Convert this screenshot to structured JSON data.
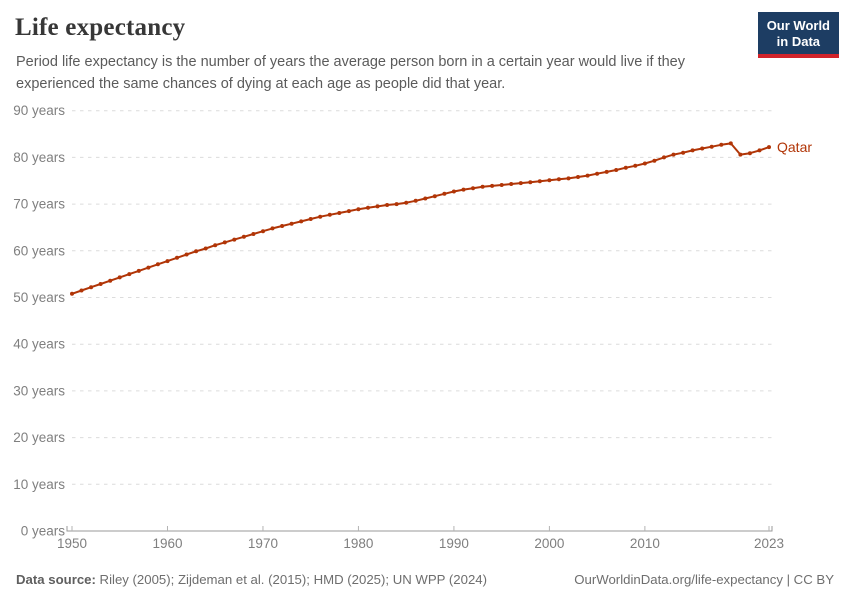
{
  "header": {
    "title": "Life expectancy",
    "subtitle": "Period life expectancy is the number of years the average person born in a certain year would live if they experienced the same chances of dying at each age as people did that year.",
    "logo": {
      "line1": "Our World",
      "line2": "in Data",
      "bg_color": "#1d3d63",
      "accent_color": "#d1232a"
    }
  },
  "footer": {
    "data_source_label": "Data source:",
    "data_source_text": " Riley (2005); Zijdeman et al. (2015); HMD (2025); UN WPP (2024)",
    "link_text": "OurWorldinData.org/life-expectancy | CC BY"
  },
  "chart_data": {
    "type": "line",
    "title": "Life expectancy",
    "grid": "horizontal-dashed",
    "legend_position": "end-of-line-label",
    "x_ticks": [
      1950,
      1960,
      1970,
      1980,
      1990,
      2000,
      2010,
      2023
    ],
    "y_ticks": [
      0,
      10,
      20,
      30,
      40,
      50,
      60,
      70,
      80,
      90
    ],
    "y_tick_suffix": " years",
    "xlim": [
      1950,
      2023
    ],
    "ylim": [
      0,
      90
    ],
    "line_color": "#B13507",
    "grid_color": "#dcdcdc",
    "axis_color": "#999999",
    "tick_label_color": "#7f7f7f",
    "series": [
      {
        "name": "Qatar",
        "color": "#B13507",
        "years": [
          1950,
          1951,
          1952,
          1953,
          1954,
          1955,
          1956,
          1957,
          1958,
          1959,
          1960,
          1961,
          1962,
          1963,
          1964,
          1965,
          1966,
          1967,
          1968,
          1969,
          1970,
          1971,
          1972,
          1973,
          1974,
          1975,
          1976,
          1977,
          1978,
          1979,
          1980,
          1981,
          1982,
          1983,
          1984,
          1985,
          1986,
          1987,
          1988,
          1989,
          1990,
          1991,
          1992,
          1993,
          1994,
          1995,
          1996,
          1997,
          1998,
          1999,
          2000,
          2001,
          2002,
          2003,
          2004,
          2005,
          2006,
          2007,
          2008,
          2009,
          2010,
          2011,
          2012,
          2013,
          2014,
          2015,
          2016,
          2017,
          2018,
          2019,
          2020,
          2021,
          2022,
          2023
        ],
        "values": [
          50.8,
          51.5,
          52.2,
          52.9,
          53.6,
          54.3,
          55.0,
          55.7,
          56.4,
          57.1,
          57.8,
          58.5,
          59.2,
          59.9,
          60.5,
          61.2,
          61.8,
          62.4,
          63.0,
          63.6,
          64.2,
          64.8,
          65.3,
          65.8,
          66.3,
          66.8,
          67.3,
          67.7,
          68.1,
          68.5,
          68.9,
          69.2,
          69.5,
          69.8,
          70.0,
          70.3,
          70.7,
          71.2,
          71.7,
          72.2,
          72.7,
          73.1,
          73.4,
          73.7,
          73.9,
          74.1,
          74.3,
          74.5,
          74.7,
          74.9,
          75.1,
          75.3,
          75.5,
          75.8,
          76.1,
          76.5,
          76.9,
          77.3,
          77.8,
          78.2,
          78.7,
          79.3,
          80.0,
          80.6,
          81.0,
          81.5,
          81.9,
          82.3,
          82.7,
          83.0,
          80.6,
          80.9,
          81.5,
          82.2
        ]
      }
    ]
  }
}
